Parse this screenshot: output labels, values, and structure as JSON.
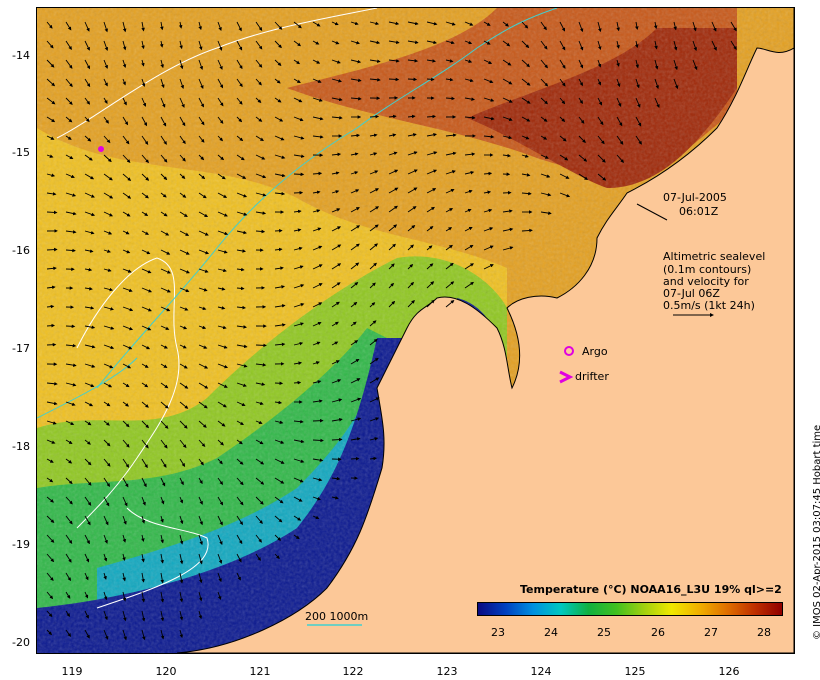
{
  "date_label": "07-Jul-2005",
  "time_label": "06:01Z",
  "legend_text": [
    "Altimetric sealevel",
    "(0.1m contours)",
    "and velocity for",
    "07-Jul 06Z",
    "0.5m/s (1kt 24h)"
  ],
  "argo_label": "Argo",
  "drifter_label": "drifter",
  "scale_label": "200  1000m",
  "colorbar": {
    "title": "Temperature (°C) NOAA16_L3U 19% ql>=2",
    "ticks": [
      "23",
      "24",
      "25",
      "26",
      "27",
      "28"
    ],
    "colors": [
      "#0a0a82",
      "#0040c0",
      "#0090e0",
      "#00c8c0",
      "#10b040",
      "#40c020",
      "#a0d010",
      "#f0e800",
      "#f0b000",
      "#e07000",
      "#c03000",
      "#900000"
    ]
  },
  "axes": {
    "y_ticks": [
      "-14",
      "-15",
      "-16",
      "-17",
      "-18",
      "-19",
      "-20"
    ],
    "x_ticks": [
      "119",
      "120",
      "121",
      "122",
      "123",
      "124",
      "125",
      "126"
    ]
  },
  "credit": "© IMOS 02-Apr-2015 03:07:45 Hobart time",
  "colors": {
    "land": "#fcc898",
    "argo": "#e000e0",
    "contour": "#40d0d0"
  }
}
